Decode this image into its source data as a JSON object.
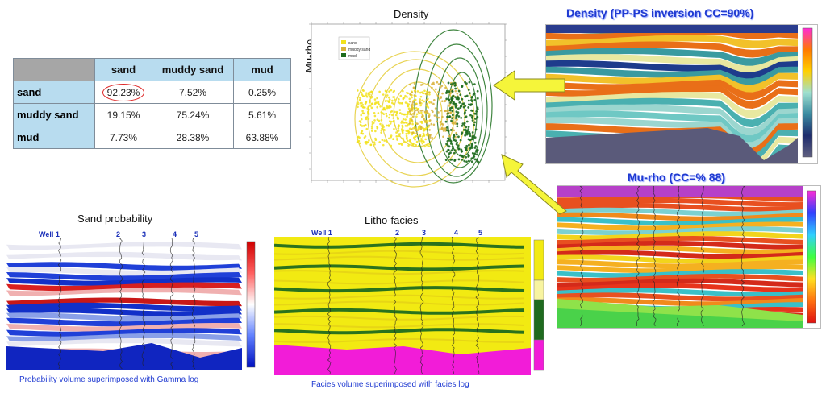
{
  "table": {
    "columns": [
      "sand",
      "muddy sand",
      "mud"
    ],
    "rows": [
      {
        "label": "sand",
        "values": [
          "92.23%",
          "7.52%",
          "0.25%"
        ]
      },
      {
        "label": "muddy sand",
        "values": [
          "19.15%",
          "75.24%",
          "5.61%"
        ]
      },
      {
        "label": "mud",
        "values": [
          "7.73%",
          "28.38%",
          "63.88%"
        ]
      }
    ]
  },
  "crossplot": {
    "title": "Density",
    "ylabel": "Mu-rho",
    "legend": [
      "sand",
      "muddy sand",
      "mud"
    ],
    "colors": {
      "sand": "#f2e21c",
      "muddy_sand": "#d8b23a",
      "mud": "#1e6b1e"
    }
  },
  "density_panel": {
    "title": "Density (PP-PS inversion CC=90%)"
  },
  "murho_panel": {
    "title": "Mu-rho  (CC=% 88)"
  },
  "sand_prob_panel": {
    "title": "Sand probability",
    "caption": "Probability volume superimposed with Gamma log",
    "wells": [
      "Well 1",
      "2",
      "3",
      "4",
      "5"
    ]
  },
  "litho_panel": {
    "title": "Litho-facies",
    "caption": "Facies volume superimposed with facies log",
    "wells": [
      "Well 1",
      "2",
      "3",
      "4",
      "5"
    ]
  },
  "colors": {
    "title_blue": "#1f3ad1",
    "arrow_yellow": "#f5f53a",
    "facies_yellow": "#f2ea12",
    "facies_green": "#1f6b1f",
    "facies_magenta": "#f21cd8"
  }
}
